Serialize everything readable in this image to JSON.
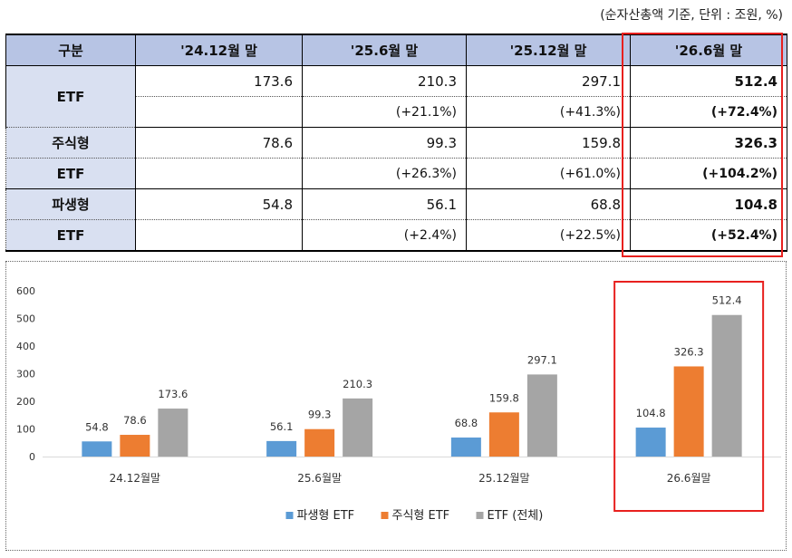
{
  "unit_note": "(순자산총액 기준, 단위 : 조원, %)",
  "table": {
    "headers": [
      "구분",
      "'24.12월 말",
      "'25.6월 말",
      "'25.12월 말",
      "'26.6월 말"
    ],
    "etf_label": "ETF",
    "etf_values": [
      "173.6",
      "210.3",
      "297.1",
      "512.4"
    ],
    "etf_growth": [
      "",
      "(+21.1%)",
      "(+41.3%)",
      "(+72.4%)"
    ],
    "equity_label_1": "주식형",
    "equity_label_2": "ETF",
    "equity_values": [
      "78.6",
      "99.3",
      "159.8",
      "326.3"
    ],
    "equity_growth": [
      "",
      "(+26.3%)",
      "(+61.0%)",
      "(+104.2%)"
    ],
    "deriv_label_1": "파생형",
    "deriv_label_2": "ETF",
    "deriv_values": [
      "54.8",
      "56.1",
      "68.8",
      "104.8"
    ],
    "deriv_growth": [
      "",
      "(+2.4%)",
      "(+22.5%)",
      "(+52.4%)"
    ]
  },
  "chart_data": {
    "type": "bar",
    "categories": [
      "24.12월말",
      "25.6월말",
      "25.12월말",
      "26.6월말"
    ],
    "series": [
      {
        "name": "파생형 ETF",
        "values": [
          54.8,
          56.1,
          68.8,
          104.8
        ],
        "color": "#5b9bd5"
      },
      {
        "name": "주식형 ETF",
        "values": [
          78.6,
          99.3,
          159.8,
          326.3
        ],
        "color": "#ed7d31"
      },
      {
        "name": "ETF (전체)",
        "values": [
          173.6,
          210.3,
          297.1,
          512.4
        ],
        "color": "#a5a5a5"
      }
    ],
    "ylim": [
      0,
      600
    ],
    "yticks": [
      0,
      100,
      200,
      300,
      400,
      500,
      600
    ],
    "grid": false,
    "legend_position": "bottom",
    "highlight_color": "#e8201e"
  }
}
